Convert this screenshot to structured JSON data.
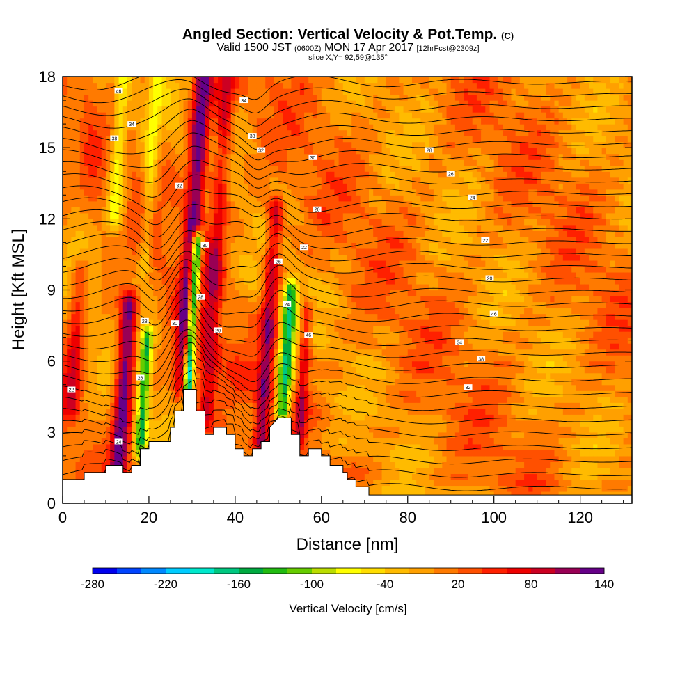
{
  "header": {
    "title": "Angled Section: Vertical Velocity & Pot.Temp.",
    "title_unit": "(C)",
    "valid_main": "Valid 1500 JST",
    "valid_utc": "(0600Z)",
    "valid_date": "MON 17 Apr 2017",
    "forecast": "[12hrFcst@2309z]",
    "slice": "slice X,Y= 92,59@135°"
  },
  "chart_data": {
    "type": "heatmap",
    "xlabel": "Distance [nm]",
    "ylabel": "Height [Kft MSL]",
    "xlim": [
      0,
      132
    ],
    "ylim": [
      0,
      18
    ],
    "x_ticks": [
      "0",
      "20",
      "40",
      "60",
      "80",
      "100",
      "120"
    ],
    "x_tick_values": [
      0,
      20,
      40,
      60,
      80,
      100,
      120
    ],
    "y_ticks": [
      "0",
      "3",
      "6",
      "9",
      "12",
      "15",
      "18"
    ],
    "y_tick_values": [
      0,
      3,
      6,
      9,
      12,
      15,
      18
    ],
    "colorbar": {
      "label": "Vertical Velocity [cm/s]",
      "tick_labels": [
        "-280",
        "-220",
        "-160",
        "-100",
        "-40",
        "20",
        "80",
        "140"
      ],
      "colors": [
        "#0000ee",
        "#0044ff",
        "#0088ff",
        "#00ccff",
        "#00e8cc",
        "#00c880",
        "#00aa40",
        "#22bb11",
        "#66cc00",
        "#bbdd00",
        "#ffff00",
        "#ffdd00",
        "#ffbb00",
        "#ffa000",
        "#ff7a00",
        "#ff5000",
        "#ff2000",
        "#ee0000",
        "#cc0022",
        "#990055",
        "#660088"
      ]
    },
    "terrain": [
      [
        0,
        1.0
      ],
      [
        5,
        1.0
      ],
      [
        5,
        1.3
      ],
      [
        10,
        1.3
      ],
      [
        10,
        1.6
      ],
      [
        14,
        1.6
      ],
      [
        14,
        1.3
      ],
      [
        16,
        1.3
      ],
      [
        16,
        1.6
      ],
      [
        18,
        1.6
      ],
      [
        18,
        2.3
      ],
      [
        20,
        2.3
      ],
      [
        20,
        2.6
      ],
      [
        23,
        2.6
      ],
      [
        23,
        2.6
      ],
      [
        25,
        2.6
      ],
      [
        25,
        3.2
      ],
      [
        26,
        3.2
      ],
      [
        26,
        3.9
      ],
      [
        28,
        3.9
      ],
      [
        28,
        4.8
      ],
      [
        31,
        4.8
      ],
      [
        31,
        3.9
      ],
      [
        33,
        3.9
      ],
      [
        33,
        2.9
      ],
      [
        35,
        2.9
      ],
      [
        35,
        3.2
      ],
      [
        38,
        3.2
      ],
      [
        38,
        2.9
      ],
      [
        40,
        2.9
      ],
      [
        40,
        2.3
      ],
      [
        42,
        2.3
      ],
      [
        42,
        2.0
      ],
      [
        44,
        2.0
      ],
      [
        44,
        2.3
      ],
      [
        46,
        2.3
      ],
      [
        46,
        2.6
      ],
      [
        48,
        2.6
      ],
      [
        48,
        3.2
      ],
      [
        50,
        3.6
      ],
      [
        53,
        3.6
      ],
      [
        53,
        2.9
      ],
      [
        55,
        2.9
      ],
      [
        55,
        2.0
      ],
      [
        57,
        2.0
      ],
      [
        57,
        2.3
      ],
      [
        60,
        2.3
      ],
      [
        60,
        2.0
      ],
      [
        62,
        2.0
      ],
      [
        62,
        1.6
      ],
      [
        65,
        1.6
      ],
      [
        65,
        1.3
      ],
      [
        66,
        1.3
      ],
      [
        66,
        1.0
      ],
      [
        68,
        1.0
      ],
      [
        68,
        0.7
      ],
      [
        71,
        0.7
      ],
      [
        71,
        0.35
      ],
      [
        132,
        0.35
      ]
    ],
    "theta_contour_labels": [
      "46",
      "34",
      "38",
      "32",
      "30",
      "28",
      "26",
      "24",
      "22",
      "20"
    ],
    "velocity_features": [
      {
        "x": 28,
        "zbot": 4.8,
        "ztop": 18,
        "peak": 140,
        "width": 2.2
      },
      {
        "x": 29,
        "zbot": 4.8,
        "ztop": 11,
        "peak": -280,
        "width": 1.2
      },
      {
        "x": 13,
        "zbot": 1.5,
        "ztop": 8.5,
        "peak": 140,
        "width": 2.0
      },
      {
        "x": 18,
        "zbot": 2.5,
        "ztop": 7,
        "peak": -140,
        "width": 1.4
      },
      {
        "x": 51,
        "zbot": 3.8,
        "ztop": 9,
        "peak": -160,
        "width": 1.6
      },
      {
        "x": 46,
        "zbot": 2.5,
        "ztop": 12.5,
        "peak": 100,
        "width": 1.8
      },
      {
        "x": 55,
        "zbot": 3.0,
        "ztop": 8,
        "peak": 80,
        "width": 1.4
      },
      {
        "x": 33,
        "zbot": 3.5,
        "ztop": 18,
        "peak": 80,
        "width": 2.0
      },
      {
        "x": 19,
        "zbot": 10,
        "ztop": 18,
        "peak": -60,
        "width": 1.5
      },
      {
        "x": 12,
        "zbot": 12,
        "ztop": 18,
        "peak": -80,
        "width": 1.8
      },
      {
        "x": 2,
        "zbot": 4,
        "ztop": 10,
        "peak": 70,
        "width": 2.0
      }
    ]
  }
}
